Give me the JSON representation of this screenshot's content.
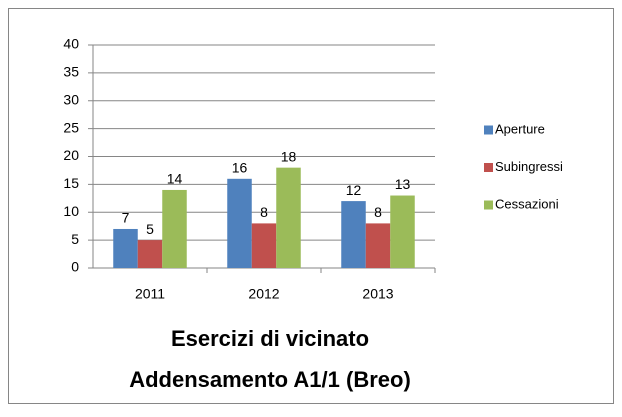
{
  "chart_data": {
    "type": "bar",
    "title": "Esercizi di vicinato",
    "subtitle": "Addensamento A1/1 (Breo)",
    "categories": [
      "2011",
      "2012",
      "2013"
    ],
    "series": [
      {
        "name": "Aperture",
        "color": "#4f81bd",
        "values": [
          7,
          16,
          12
        ]
      },
      {
        "name": "Subingressi",
        "color": "#c0504d",
        "values": [
          5,
          8,
          8
        ]
      },
      {
        "name": "Cessazioni",
        "color": "#9bbb59",
        "values": [
          14,
          18,
          13
        ]
      }
    ],
    "ylim": [
      0,
      40
    ],
    "yticks": [
      0,
      5,
      10,
      15,
      20,
      25,
      30,
      35,
      40
    ],
    "grid": true,
    "legend": "right"
  }
}
